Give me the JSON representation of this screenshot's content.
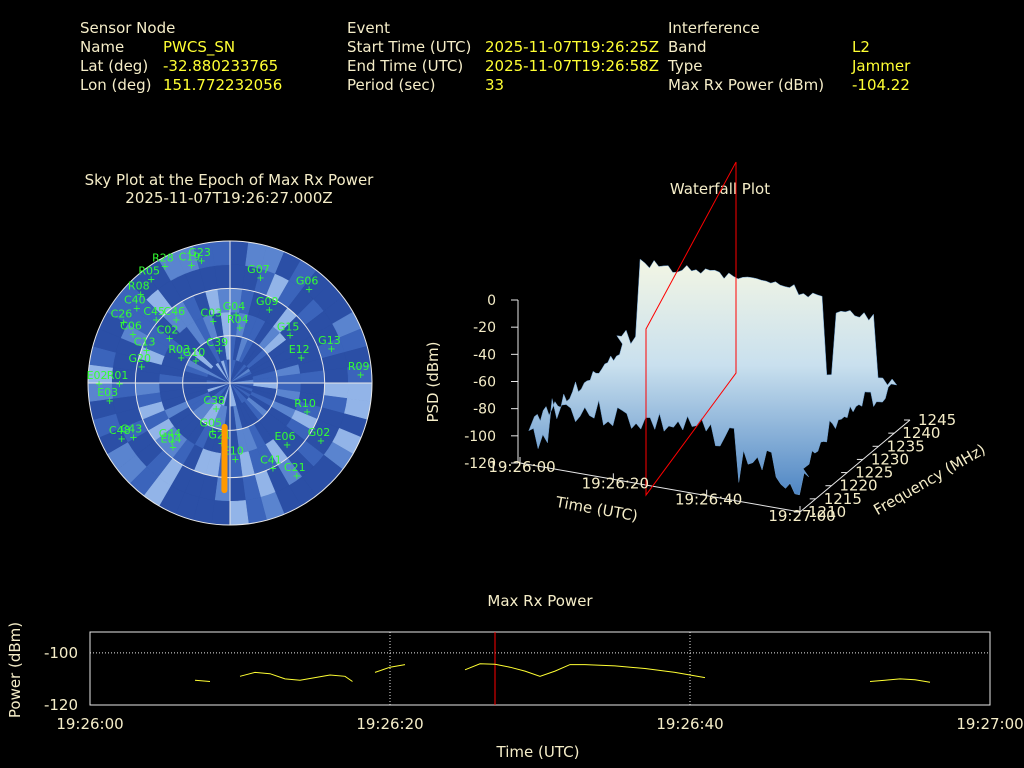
{
  "header": {
    "sensor": {
      "heading": "Sensor Node",
      "rows": [
        {
          "label": "Name",
          "value": "PWCS_SN"
        },
        {
          "label": "Lat (deg)",
          "value": "-32.880233765"
        },
        {
          "label": "Lon (deg)",
          "value": "151.772232056"
        }
      ]
    },
    "event": {
      "heading": "Event",
      "rows": [
        {
          "label": "Start Time (UTC)",
          "value": "2025-11-07T19:26:25Z"
        },
        {
          "label": "End Time (UTC)",
          "value": "2025-11-07T19:26:58Z"
        },
        {
          "label": "Period (sec)",
          "value": "33"
        }
      ]
    },
    "interference": {
      "heading": "Interference",
      "rows": [
        {
          "label": "Band",
          "value": "L2"
        },
        {
          "label": "Type",
          "value": "Jammer"
        },
        {
          "label": "Max Rx Power (dBm)",
          "value": "-104.22"
        }
      ]
    }
  },
  "colors": {
    "label": "#f5edc8",
    "value": "#ffff33",
    "sat_label": "#33ff33",
    "sky_dark": "#2a4fa8",
    "sky_light": "#8fb0e6",
    "power_line": "#ffff33",
    "marker_line": "#ff0000",
    "waterfall_frame": "#ff0000"
  },
  "chart_data": [
    {
      "type": "scatter",
      "kind": "polar-sky-plot",
      "title": "Sky Plot at the Epoch of Max Rx Power",
      "subtitle": "2025-11-07T19:26:27.000Z",
      "elevation_rings_deg": [
        0,
        30,
        60
      ],
      "satellites": [
        {
          "id": "R28",
          "az": 331,
          "el": 5
        },
        {
          "id": "R05",
          "az": 323,
          "el": 7
        },
        {
          "id": "G23",
          "az": 347,
          "el": 10
        },
        {
          "id": "C19",
          "az": 342,
          "el": 11
        },
        {
          "id": "R08",
          "az": 315,
          "el": 10
        },
        {
          "id": "C40",
          "az": 309,
          "el": 14
        },
        {
          "id": "C26",
          "az": 300,
          "el": 12
        },
        {
          "id": "C06",
          "az": 297,
          "el": 21
        },
        {
          "id": "C45",
          "az": 311,
          "el": 28
        },
        {
          "id": "C13",
          "az": 292,
          "el": 33
        },
        {
          "id": "G07",
          "az": 16,
          "el": 20
        },
        {
          "id": "G06",
          "az": 40,
          "el": 12
        },
        {
          "id": "C02",
          "az": 307,
          "el": 42
        },
        {
          "id": "C46",
          "az": 320,
          "el": 37
        },
        {
          "id": "G04",
          "az": 5,
          "el": 46
        },
        {
          "id": "G09",
          "az": 28,
          "el": 37
        },
        {
          "id": "C03",
          "az": 345,
          "el": 49
        },
        {
          "id": "R04",
          "az": 10,
          "el": 54
        },
        {
          "id": "G15",
          "az": 51,
          "el": 41
        },
        {
          "id": "G13",
          "az": 71,
          "el": 22
        },
        {
          "id": "R09",
          "az": 86,
          "el": 7
        },
        {
          "id": "G10",
          "az": 304,
          "el": 64
        },
        {
          "id": "C39",
          "az": 342,
          "el": 68
        },
        {
          "id": "R03",
          "az": 298,
          "el": 55
        },
        {
          "id": "G20",
          "az": 281,
          "el": 33
        },
        {
          "id": "R01",
          "az": 270,
          "el": 20
        },
        {
          "id": "E02",
          "az": 270,
          "el": 7
        },
        {
          "id": "E03",
          "az": 262,
          "el": 13
        },
        {
          "id": "E12",
          "az": 70,
          "el": 42
        },
        {
          "id": "R10",
          "az": 110,
          "el": 38
        },
        {
          "id": "E06",
          "az": 137,
          "el": 37
        },
        {
          "id": "G02",
          "az": 122,
          "el": 22
        },
        {
          "id": "C48",
          "az": 243,
          "el": 13
        },
        {
          "id": "C43",
          "az": 241,
          "el": 20
        },
        {
          "id": "E10",
          "az": 176,
          "el": 42
        },
        {
          "id": "E04",
          "az": 222,
          "el": 36
        },
        {
          "id": "G44",
          "az": 225,
          "el": 38
        },
        {
          "id": "C41",
          "az": 153,
          "el": 30
        },
        {
          "id": "C21",
          "az": 144,
          "el": 18
        },
        {
          "id": "G21",
          "az": 188,
          "el": 52
        },
        {
          "id": "C38",
          "az": 209,
          "el": 72
        },
        {
          "id": "G05",
          "az": 200,
          "el": 58
        }
      ],
      "jammer_track": {
        "az_start": 183,
        "el_start": 22,
        "az_end": 187,
        "el_end": 62
      }
    },
    {
      "type": "area",
      "kind": "waterfall-3d",
      "title": "Waterfall Plot",
      "zlabel": "PSD (dBm)",
      "xlabel": "Time (UTC)",
      "ylabel": "Frequency (MHz)",
      "zticks": [
        0,
        -20,
        -40,
        -60,
        -80,
        -100,
        -120
      ],
      "xticks": [
        "19:26:00",
        "19:26:20",
        "19:26:40",
        "19:27:00"
      ],
      "yticks": [
        "1210",
        "1215",
        "1220",
        "1225",
        "1230",
        "1235",
        "1240",
        "1245"
      ]
    },
    {
      "type": "line",
      "title": "Max Rx Power",
      "xlabel": "Time (UTC)",
      "ylabel": "Power (dBm)",
      "ylim": [
        -120,
        -92
      ],
      "yticks": [
        -100,
        -120
      ],
      "xlim_sec": [
        0,
        60
      ],
      "xticks": [
        "19:26:00",
        "19:26:20",
        "19:26:40",
        "19:27:00"
      ],
      "marker_sec": 27,
      "segments": [
        [
          [
            7,
            -110.5
          ],
          [
            8,
            -111
          ]
        ],
        [
          [
            10,
            -109
          ],
          [
            11,
            -107.5
          ],
          [
            12,
            -108
          ],
          [
            13,
            -110
          ],
          [
            14,
            -110.5
          ],
          [
            15,
            -109.5
          ],
          [
            16,
            -108.5
          ],
          [
            17,
            -109
          ],
          [
            17.5,
            -111
          ]
        ],
        [
          [
            19,
            -107.5
          ],
          [
            20,
            -105.5
          ],
          [
            21,
            -104.5
          ]
        ],
        [
          [
            25,
            -106.5
          ],
          [
            26,
            -104.2
          ],
          [
            27,
            -104.4
          ],
          [
            28,
            -105.5
          ],
          [
            29,
            -107
          ],
          [
            30,
            -109
          ],
          [
            31,
            -107
          ],
          [
            32,
            -104.5
          ],
          [
            33,
            -104.5
          ],
          [
            35,
            -105
          ],
          [
            37,
            -106
          ],
          [
            39,
            -107.5
          ],
          [
            41,
            -109.5
          ]
        ],
        [
          [
            52,
            -111
          ],
          [
            53,
            -110.5
          ],
          [
            54,
            -110
          ],
          [
            55,
            -110.3
          ],
          [
            56,
            -111.3
          ]
        ]
      ]
    }
  ]
}
